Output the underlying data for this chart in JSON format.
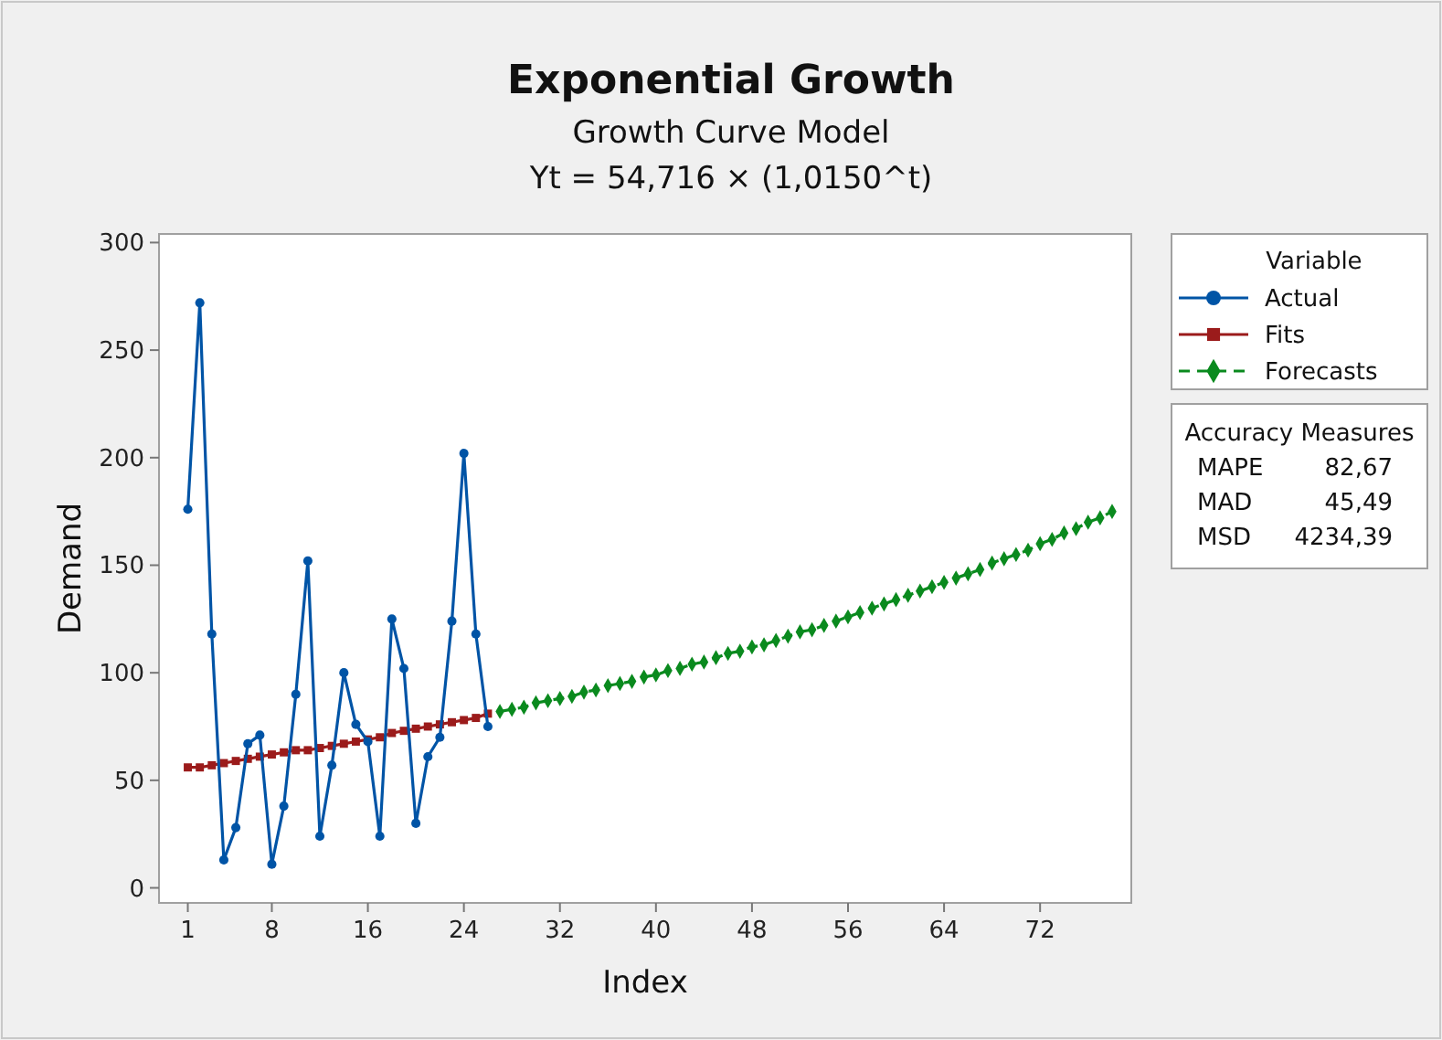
{
  "chart_data": {
    "type": "line",
    "title": "Exponential Growth",
    "subtitle": "Growth Curve Model\nYt = 54,716 × (1,0150^t)",
    "xlabel": "Index",
    "ylabel": "Demand",
    "legend_title": "Variable",
    "legend": "top right",
    "xlim": [
      -1.4,
      79.6
    ],
    "ylim": [
      -7,
      304
    ],
    "xticks": [
      1,
      8,
      16,
      24,
      32,
      40,
      48,
      56,
      64,
      72
    ],
    "yticks": [
      0,
      50,
      100,
      150,
      200,
      250,
      300
    ],
    "grid": false,
    "annotations": [
      "Accuracy Measures",
      "MAPE",
      "82,67",
      "MAD",
      "45,49",
      "MSD",
      "4234,39"
    ],
    "series": [
      {
        "name": "Actual",
        "color": "#0054a6",
        "marker": "circle",
        "line_style": "solid",
        "x": [
          1,
          2,
          3,
          4,
          5,
          6,
          7,
          8,
          9,
          10,
          11,
          12,
          13,
          14,
          15,
          16,
          17,
          18,
          19,
          20,
          21,
          22,
          23,
          24,
          25,
          26
        ],
        "values": [
          176,
          272,
          118,
          13,
          28,
          67,
          71,
          11,
          38,
          90,
          152,
          24,
          57,
          100,
          76,
          68,
          24,
          125,
          102,
          30,
          61,
          70,
          124,
          202,
          118,
          75
        ]
      },
      {
        "name": "Fits",
        "color": "#9b1b1b",
        "marker": "square",
        "line_style": "solid",
        "x": [
          1,
          2,
          3,
          4,
          5,
          6,
          7,
          8,
          9,
          10,
          11,
          12,
          13,
          14,
          15,
          16,
          17,
          18,
          19,
          20,
          21,
          22,
          23,
          24,
          25,
          26
        ],
        "values": [
          56,
          56,
          57,
          58,
          59,
          60,
          61,
          62,
          63,
          64,
          64,
          65,
          66,
          67,
          68,
          69,
          70,
          72,
          73,
          74,
          75,
          76,
          77,
          78,
          79,
          81
        ]
      },
      {
        "name": "Forecasts",
        "color": "#0a8a1e",
        "marker": "diamond",
        "line_style": "dashed",
        "x": [
          27,
          28,
          29,
          30,
          31,
          32,
          33,
          34,
          35,
          36,
          37,
          38,
          39,
          40,
          41,
          42,
          43,
          44,
          45,
          46,
          47,
          48,
          49,
          50,
          51,
          52,
          53,
          54,
          55,
          56,
          57,
          58,
          59,
          60,
          61,
          62,
          63,
          64,
          65,
          66,
          67,
          68,
          69,
          70,
          71,
          72,
          73,
          74,
          75,
          76,
          77,
          78
        ],
        "values": [
          82,
          83,
          84,
          86,
          87,
          88,
          89,
          91,
          92,
          94,
          95,
          96,
          98,
          99,
          101,
          102,
          104,
          105,
          107,
          109,
          110,
          112,
          113,
          115,
          117,
          119,
          120,
          122,
          124,
          126,
          128,
          130,
          132,
          134,
          136,
          138,
          140,
          142,
          144,
          146,
          148,
          151,
          153,
          155,
          157,
          160,
          162,
          165,
          167,
          170,
          172,
          175
        ]
      }
    ]
  }
}
